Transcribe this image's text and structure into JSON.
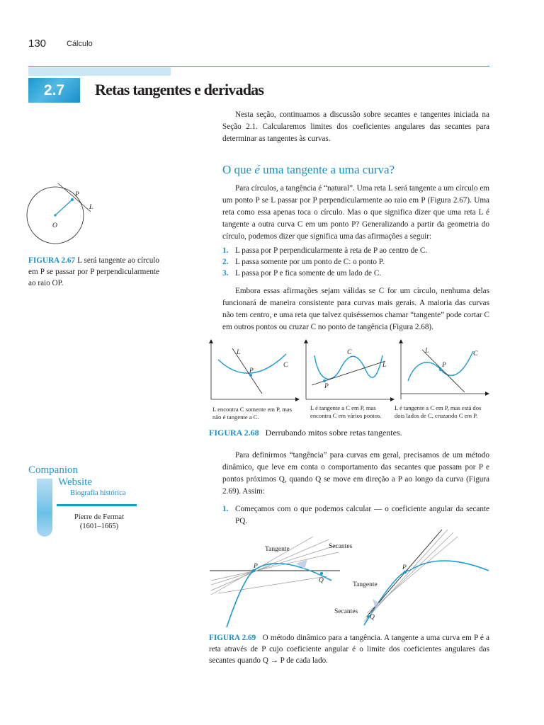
{
  "header": {
    "page_number": "130",
    "running_title": "Cálculo"
  },
  "section": {
    "number": "2.7",
    "title": "Retas tangentes e derivadas"
  },
  "intro": "Nesta seção, continuamos a discussão sobre secantes e tangentes iniciada na Seção 2.1. Calcularemos limites dos coeficientes angulares das secantes para determinar as tangentes às curvas.",
  "subsection": {
    "pre": "O que ",
    "em": "é",
    "post": " uma tangente a uma curva?"
  },
  "para1": "Para círculos, a tangência é “natural”. Uma reta L será tangente a um círculo em um ponto P se L passar por P perpendicularmente ao raio em P (Figura 2.67). Uma reta como essa apenas toca o círculo. Mas o que significa dizer que uma reta L é tangente a outra curva C em um ponto P? Generalizando a partir da geometria do círculo, podemos dizer que significa uma das afirmações a seguir:",
  "list1": [
    {
      "num": "1.",
      "text": "L passa por P perpendicularmente à reta de P ao centro de C."
    },
    {
      "num": "2.",
      "text": "L passa somente por um ponto de C: o ponto P."
    },
    {
      "num": "3.",
      "text": "L passa por P e fica somente de um lado de C."
    }
  ],
  "para2": "Embora essas afirmações sejam válidas se C for um círculo, nenhuma delas funcionará de maneira consistente para curvas mais gerais. A maioria das curvas não tem centro, e uma reta que talvez quiséssemos chamar “tangente” pode cortar C em outros pontos ou cruzar C no ponto de tangência (Figura 2.68).",
  "fig267": {
    "label": "FIGURA 2.67",
    "caption": "L será tangente ao círculo em P se passar por P perpendicularmente ao raio OP.",
    "labels": {
      "P": "P",
      "L": "L",
      "O": "O"
    }
  },
  "fig268": {
    "label": "FIGURA 2.68",
    "caption": "Derrubando mitos sobre retas tangentes.",
    "panels": [
      {
        "L": "L",
        "C": "C",
        "P": "P",
        "caption": "L encontra C somente em P, mas não é tangente a C."
      },
      {
        "L": "L",
        "C": "C",
        "P": "P",
        "caption": "L é tangente a C em P, mas encontra C em vários pontos."
      },
      {
        "L": "L",
        "C": "C",
        "P": "P",
        "caption": "L é tangente a C em P, mas está dos dois lados de C, cruzando C em P."
      }
    ]
  },
  "para3": "Para definirmos “tangência” para curvas em geral, precisamos de um método dinâmico, que leve em conta o comportamento das secantes que passam por P e pontos próximos Q, quando Q se move em direção a P ao longo da curva (Figura 2.69). Assim:",
  "list2": [
    {
      "num": "1.",
      "text": "Começamos com o que podemos calcular — o coeficiente angular da secante PQ."
    }
  ],
  "fig269": {
    "label": "FIGURA 2.69",
    "caption": "O método dinâmico para a tangência. A tangente a uma curva em P é a reta através de P cujo coeficiente angular é o limite dos coeficientes angulares das secantes quando Q → P de cada lado.",
    "labels": {
      "tangente": "Tangente",
      "secantes": "Secantes",
      "P": "P",
      "Q": "Q"
    }
  },
  "companion": {
    "line1": "Companion",
    "line2": "Website",
    "link": "Biografia histórica",
    "name": "Pierre de Fermat",
    "dates": "(1601–1665)"
  },
  "colors": {
    "accent": "#1a8fc4",
    "curve": "#1a9bd0"
  }
}
